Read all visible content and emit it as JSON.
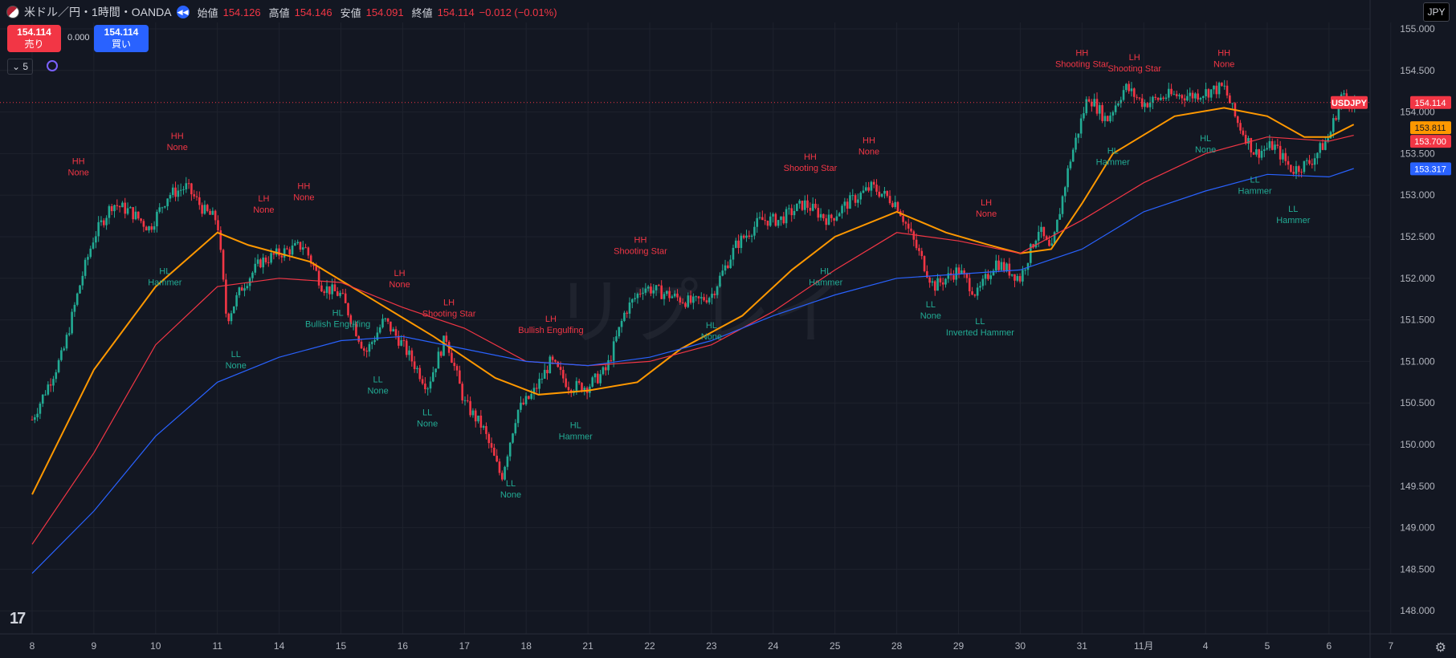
{
  "header": {
    "symbol": "米ドル／円・1時間・OANDA",
    "open_label": "始値",
    "open": "154.126",
    "high_label": "高値",
    "high": "154.146",
    "low_label": "安値",
    "low": "154.091",
    "close_label": "終値",
    "close": "154.114",
    "change": "−0.012 (−0.01%)"
  },
  "trade": {
    "sell_price": "154.114",
    "sell_label": "売り",
    "spread": "0.000",
    "buy_price": "154.114",
    "buy_label": "買い"
  },
  "indicator_toggle": "5",
  "currency": "JPY",
  "watermark": "リプレイ",
  "colors": {
    "background": "#131722",
    "grid": "#1e222d",
    "up": "#22ab94",
    "down": "#f23645",
    "ema_short": "#ff9800",
    "ema_mid": "#f23645",
    "ema_long": "#2962ff",
    "label_high": "#f23645",
    "label_low": "#22ab94"
  },
  "chart_data": {
    "type": "candlestick",
    "title": "米ドル／円・1時間・OANDA",
    "ylim": [
      147.75,
      155.25
    ],
    "y_ticks": [
      "148.000",
      "148.500",
      "149.000",
      "149.500",
      "150.000",
      "150.500",
      "151.000",
      "151.500",
      "152.000",
      "152.500",
      "153.000",
      "153.500",
      "154.000",
      "154.500",
      "155.000"
    ],
    "x_ticks": [
      "8",
      "9",
      "10",
      "11",
      "14",
      "15",
      "16",
      "17",
      "18",
      "21",
      "22",
      "23",
      "24",
      "25",
      "28",
      "29",
      "30",
      "31",
      "11月",
      "4",
      "5",
      "6",
      "7"
    ],
    "grid": true,
    "price_path": [
      {
        "t": 0.0,
        "p": 150.3
      },
      {
        "t": 0.5,
        "p": 151.1
      },
      {
        "t": 0.8,
        "p": 152.0
      },
      {
        "t": 1.0,
        "p": 152.5
      },
      {
        "t": 1.3,
        "p": 152.9
      },
      {
        "t": 1.6,
        "p": 152.8
      },
      {
        "t": 1.9,
        "p": 152.6
      },
      {
        "t": 2.2,
        "p": 153.0
      },
      {
        "t": 2.5,
        "p": 153.1
      },
      {
        "t": 2.8,
        "p": 152.8
      },
      {
        "t": 3.0,
        "p": 152.7
      },
      {
        "t": 3.15,
        "p": 151.5
      },
      {
        "t": 3.4,
        "p": 151.9
      },
      {
        "t": 3.7,
        "p": 152.2
      },
      {
        "t": 4.0,
        "p": 152.3
      },
      {
        "t": 4.4,
        "p": 152.4
      },
      {
        "t": 4.7,
        "p": 151.9
      },
      {
        "t": 5.0,
        "p": 151.8
      },
      {
        "t": 5.4,
        "p": 151.1
      },
      {
        "t": 5.7,
        "p": 151.5
      },
      {
        "t": 6.0,
        "p": 151.2
      },
      {
        "t": 6.4,
        "p": 150.7
      },
      {
        "t": 6.7,
        "p": 151.3
      },
      {
        "t": 7.0,
        "p": 150.5
      },
      {
        "t": 7.3,
        "p": 150.2
      },
      {
        "t": 7.6,
        "p": 149.6
      },
      {
        "t": 7.85,
        "p": 150.4
      },
      {
        "t": 8.1,
        "p": 150.6
      },
      {
        "t": 8.4,
        "p": 151.0
      },
      {
        "t": 8.7,
        "p": 150.7
      },
      {
        "t": 9.0,
        "p": 150.7
      },
      {
        "t": 9.3,
        "p": 150.9
      },
      {
        "t": 9.6,
        "p": 151.6
      },
      {
        "t": 9.9,
        "p": 151.9
      },
      {
        "t": 10.3,
        "p": 151.8
      },
      {
        "t": 10.7,
        "p": 151.7
      },
      {
        "t": 11.0,
        "p": 151.8
      },
      {
        "t": 11.4,
        "p": 152.4
      },
      {
        "t": 11.8,
        "p": 152.7
      },
      {
        "t": 12.1,
        "p": 152.7
      },
      {
        "t": 12.5,
        "p": 152.9
      },
      {
        "t": 12.9,
        "p": 152.7
      },
      {
        "t": 13.2,
        "p": 152.9
      },
      {
        "t": 13.6,
        "p": 153.1
      },
      {
        "t": 14.0,
        "p": 152.9
      },
      {
        "t": 14.3,
        "p": 152.4
      },
      {
        "t": 14.6,
        "p": 151.9
      },
      {
        "t": 15.0,
        "p": 152.1
      },
      {
        "t": 15.3,
        "p": 151.8
      },
      {
        "t": 15.6,
        "p": 152.2
      },
      {
        "t": 16.0,
        "p": 152.0
      },
      {
        "t": 16.3,
        "p": 152.6
      },
      {
        "t": 16.5,
        "p": 152.3
      },
      {
        "t": 16.8,
        "p": 153.4
      },
      {
        "t": 17.1,
        "p": 154.2
      },
      {
        "t": 17.4,
        "p": 153.9
      },
      {
        "t": 17.7,
        "p": 154.3
      },
      {
        "t": 18.0,
        "p": 154.1
      },
      {
        "t": 18.4,
        "p": 154.2
      },
      {
        "t": 18.8,
        "p": 154.2
      },
      {
        "t": 19.3,
        "p": 154.3
      },
      {
        "t": 19.5,
        "p": 153.9
      },
      {
        "t": 19.8,
        "p": 153.5
      },
      {
        "t": 20.1,
        "p": 153.6
      },
      {
        "t": 20.4,
        "p": 153.3
      },
      {
        "t": 20.7,
        "p": 153.4
      },
      {
        "t": 21.0,
        "p": 153.7
      },
      {
        "t": 21.2,
        "p": 154.2
      },
      {
        "t": 21.4,
        "p": 154.1
      }
    ],
    "series": [
      {
        "name": "",
        "color": "#ff9800",
        "points": [
          {
            "t": 0,
            "p": 149.4
          },
          {
            "t": 1,
            "p": 150.9
          },
          {
            "t": 2,
            "p": 151.9
          },
          {
            "t": 3,
            "p": 152.55
          },
          {
            "t": 3.5,
            "p": 152.4
          },
          {
            "t": 4.5,
            "p": 152.2
          },
          {
            "t": 5.5,
            "p": 151.75
          },
          {
            "t": 6.5,
            "p": 151.3
          },
          {
            "t": 7.5,
            "p": 150.8
          },
          {
            "t": 8.2,
            "p": 150.6
          },
          {
            "t": 9.0,
            "p": 150.65
          },
          {
            "t": 9.8,
            "p": 150.75
          },
          {
            "t": 10.5,
            "p": 151.15
          },
          {
            "t": 11.5,
            "p": 151.55
          },
          {
            "t": 12.3,
            "p": 152.1
          },
          {
            "t": 13.0,
            "p": 152.5
          },
          {
            "t": 14.0,
            "p": 152.8
          },
          {
            "t": 14.8,
            "p": 152.55
          },
          {
            "t": 15.5,
            "p": 152.4
          },
          {
            "t": 16.0,
            "p": 152.3
          },
          {
            "t": 16.5,
            "p": 152.35
          },
          {
            "t": 17.0,
            "p": 152.9
          },
          {
            "t": 17.5,
            "p": 153.5
          },
          {
            "t": 18.5,
            "p": 153.95
          },
          {
            "t": 19.3,
            "p": 154.05
          },
          {
            "t": 20.0,
            "p": 153.95
          },
          {
            "t": 20.6,
            "p": 153.7
          },
          {
            "t": 21.0,
            "p": 153.7
          },
          {
            "t": 21.4,
            "p": 153.85
          }
        ]
      },
      {
        "name": "",
        "color": "#f23645",
        "points": [
          {
            "t": 0,
            "p": 148.8
          },
          {
            "t": 1,
            "p": 149.9
          },
          {
            "t": 2,
            "p": 151.2
          },
          {
            "t": 3,
            "p": 151.9
          },
          {
            "t": 4,
            "p": 152.0
          },
          {
            "t": 5,
            "p": 151.95
          },
          {
            "t": 6,
            "p": 151.65
          },
          {
            "t": 7,
            "p": 151.4
          },
          {
            "t": 8,
            "p": 151.0
          },
          {
            "t": 9,
            "p": 150.95
          },
          {
            "t": 10,
            "p": 151.0
          },
          {
            "t": 11,
            "p": 151.2
          },
          {
            "t": 12,
            "p": 151.6
          },
          {
            "t": 13,
            "p": 152.1
          },
          {
            "t": 14,
            "p": 152.55
          },
          {
            "t": 15,
            "p": 152.45
          },
          {
            "t": 16,
            "p": 152.3
          },
          {
            "t": 17,
            "p": 152.7
          },
          {
            "t": 18,
            "p": 153.15
          },
          {
            "t": 19,
            "p": 153.5
          },
          {
            "t": 20,
            "p": 153.7
          },
          {
            "t": 21,
            "p": 153.65
          },
          {
            "t": 21.4,
            "p": 153.72
          }
        ]
      },
      {
        "name": "",
        "color": "#2962ff",
        "points": [
          {
            "t": 0,
            "p": 148.45
          },
          {
            "t": 1,
            "p": 149.2
          },
          {
            "t": 2,
            "p": 150.1
          },
          {
            "t": 3,
            "p": 150.75
          },
          {
            "t": 4,
            "p": 151.05
          },
          {
            "t": 5,
            "p": 151.25
          },
          {
            "t": 6,
            "p": 151.3
          },
          {
            "t": 7,
            "p": 151.15
          },
          {
            "t": 8,
            "p": 151.0
          },
          {
            "t": 9,
            "p": 150.95
          },
          {
            "t": 10,
            "p": 151.05
          },
          {
            "t": 11,
            "p": 151.25
          },
          {
            "t": 12,
            "p": 151.55
          },
          {
            "t": 13,
            "p": 151.8
          },
          {
            "t": 14,
            "p": 152.0
          },
          {
            "t": 15,
            "p": 152.05
          },
          {
            "t": 16,
            "p": 152.1
          },
          {
            "t": 17,
            "p": 152.35
          },
          {
            "t": 18,
            "p": 152.8
          },
          {
            "t": 19,
            "p": 153.05
          },
          {
            "t": 20,
            "p": 153.25
          },
          {
            "t": 21,
            "p": 153.22
          },
          {
            "t": 21.4,
            "p": 153.32
          }
        ]
      }
    ],
    "price_labels": [
      {
        "text": "154.114",
        "color": "#f23645",
        "value": 154.114
      },
      {
        "text": "153.811",
        "color": "#ff9800",
        "value": 153.811
      },
      {
        "text": "153.700",
        "color": "#f23645",
        "value": 153.7
      },
      {
        "text": "153.317",
        "color": "#2962ff",
        "value": 153.317
      }
    ],
    "symbol_tag": "USDJPY",
    "last_price": 154.114,
    "annotations": [
      {
        "kind": "high",
        "t": 0.75,
        "p": 153.25,
        "l1": "HH",
        "l2": "None"
      },
      {
        "kind": "high",
        "t": 2.35,
        "p": 153.55,
        "l1": "HH",
        "l2": "None"
      },
      {
        "kind": "high",
        "t": 3.75,
        "p": 152.8,
        "l1": "LH",
        "l2": "None"
      },
      {
        "kind": "high",
        "t": 4.4,
        "p": 152.95,
        "l1": "HH",
        "l2": "None"
      },
      {
        "kind": "high",
        "t": 5.95,
        "p": 151.9,
        "l1": "LH",
        "l2": "None"
      },
      {
        "kind": "high",
        "t": 6.75,
        "p": 151.55,
        "l1": "LH",
        "l2": "Shooting Star"
      },
      {
        "kind": "high",
        "t": 8.4,
        "p": 151.35,
        "l1": "LH",
        "l2": "Bullish Engulfing"
      },
      {
        "kind": "high",
        "t": 9.85,
        "p": 152.3,
        "l1": "HH",
        "l2": "Shooting Star"
      },
      {
        "kind": "high",
        "t": 12.6,
        "p": 153.3,
        "l1": "HH",
        "l2": "Shooting Star"
      },
      {
        "kind": "high",
        "t": 13.55,
        "p": 153.5,
        "l1": "HH",
        "l2": "None"
      },
      {
        "kind": "high",
        "t": 15.45,
        "p": 152.75,
        "l1": "LH",
        "l2": "None"
      },
      {
        "kind": "high",
        "t": 17.0,
        "p": 154.55,
        "l1": "HH",
        "l2": "Shooting Star"
      },
      {
        "kind": "high",
        "t": 17.85,
        "p": 154.5,
        "l1": "LH",
        "l2": "Shooting Star"
      },
      {
        "kind": "high",
        "t": 19.3,
        "p": 154.55,
        "l1": "HH",
        "l2": "None"
      },
      {
        "kind": "low",
        "t": 2.15,
        "p": 152.05,
        "l1": "HL",
        "l2": "Hammer"
      },
      {
        "kind": "low",
        "t": 3.3,
        "p": 151.05,
        "l1": "LL",
        "l2": "None"
      },
      {
        "kind": "low",
        "t": 4.95,
        "p": 151.55,
        "l1": "HL",
        "l2": "Bullish Engulfing"
      },
      {
        "kind": "low",
        "t": 5.6,
        "p": 150.75,
        "l1": "LL",
        "l2": "None"
      },
      {
        "kind": "low",
        "t": 6.4,
        "p": 150.35,
        "l1": "LL",
        "l2": "None"
      },
      {
        "kind": "low",
        "t": 7.75,
        "p": 149.5,
        "l1": "LL",
        "l2": "None"
      },
      {
        "kind": "low",
        "t": 8.8,
        "p": 150.2,
        "l1": "HL",
        "l2": "Hammer"
      },
      {
        "kind": "low",
        "t": 11.0,
        "p": 151.4,
        "l1": "HL",
        "l2": "None"
      },
      {
        "kind": "low",
        "t": 12.85,
        "p": 152.05,
        "l1": "HL",
        "l2": "Hammer"
      },
      {
        "kind": "low",
        "t": 14.55,
        "p": 151.65,
        "l1": "LL",
        "l2": "None"
      },
      {
        "kind": "low",
        "t": 15.35,
        "p": 151.45,
        "l1": "LL",
        "l2": "Inverted Hammer"
      },
      {
        "kind": "low",
        "t": 17.5,
        "p": 153.5,
        "l1": "HL",
        "l2": "Hammer"
      },
      {
        "kind": "low",
        "t": 19.0,
        "p": 153.65,
        "l1": "HL",
        "l2": "None"
      },
      {
        "kind": "low",
        "t": 19.8,
        "p": 153.15,
        "l1": "LL",
        "l2": "Hammer"
      },
      {
        "kind": "low",
        "t": 20.42,
        "p": 152.8,
        "l1": "LL",
        "l2": "Hammer"
      }
    ]
  }
}
